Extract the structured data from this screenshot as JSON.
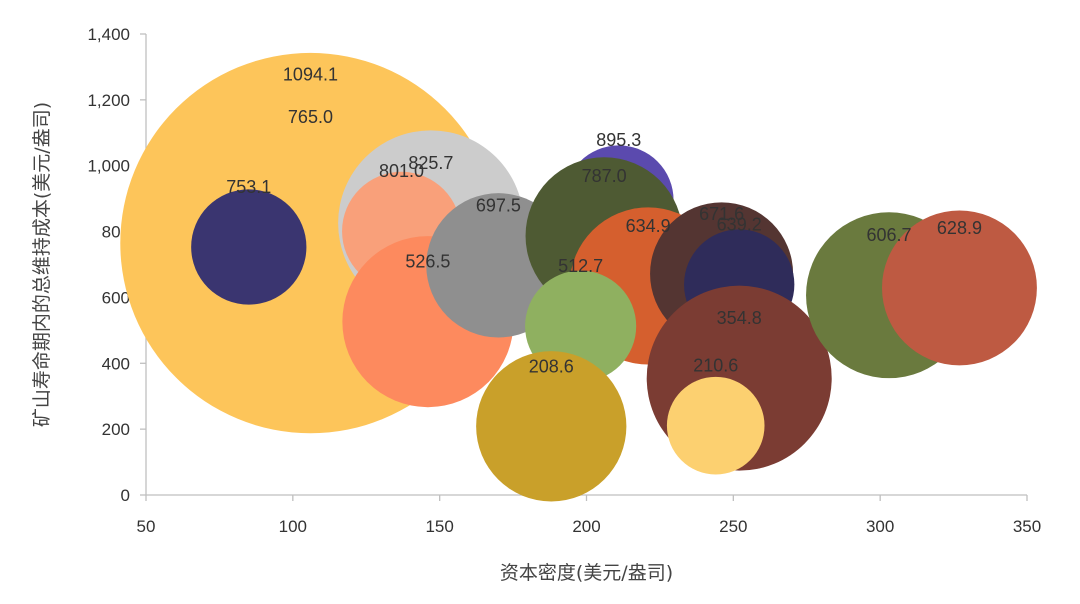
{
  "chart_data": {
    "type": "scatter",
    "subtype": "bubble",
    "title": "",
    "xlabel": "资本密度(美元/盎司)",
    "ylabel": "矿山寿命期内的总维持成本(美元/盎司)",
    "xlim": [
      50,
      350
    ],
    "ylim": [
      0,
      1400
    ],
    "x_ticks": [
      50,
      100,
      150,
      200,
      250,
      300,
      350
    ],
    "y_ticks": [
      0,
      200,
      400,
      600,
      800,
      1000,
      1200,
      1400
    ],
    "x_tick_labels": [
      "50",
      "100",
      "150",
      "200",
      "250",
      "300",
      "350"
    ],
    "y_tick_labels": [
      "0",
      "200",
      "400",
      "600",
      "800",
      "1,000",
      "1,200",
      "1,400"
    ],
    "grid": false,
    "points": [
      {
        "x": 106,
        "y": 1094.1,
        "size": 1094.1,
        "label": "1094.1",
        "color": "#d0d0d0"
      },
      {
        "x": 106,
        "y": 765.0,
        "size": 8200,
        "label": "765.0",
        "color": "#fdc55a"
      },
      {
        "x": 85,
        "y": 753.1,
        "size": 753.1,
        "label": "753.1",
        "color": "#3a3570"
      },
      {
        "x": 147,
        "y": 825.7,
        "size": 1950,
        "label": "825.7",
        "color": "#cccccc"
      },
      {
        "x": 137,
        "y": 801.0,
        "size": 801.0,
        "label": "801.0",
        "color": "#f9a07a"
      },
      {
        "x": 146,
        "y": 526.5,
        "size": 1660,
        "label": "526.5",
        "color": "#fd8a5e"
      },
      {
        "x": 170,
        "y": 697.5,
        "size": 1180,
        "label": "697.5",
        "color": "#8f8f8f"
      },
      {
        "x": 211,
        "y": 895.3,
        "size": 680,
        "label": "895.3",
        "color": "#5b4aae"
      },
      {
        "x": 206,
        "y": 787.0,
        "size": 1400,
        "label": "787.0",
        "color": "#4e5a33"
      },
      {
        "x": 221,
        "y": 634.9,
        "size": 1400,
        "label": "634.9",
        "color": "#d55f2e"
      },
      {
        "x": 198,
        "y": 512.7,
        "size": 700,
        "label": "512.7",
        "color": "#8fb060"
      },
      {
        "x": 188,
        "y": 208.6,
        "size": 1280,
        "label": "208.6",
        "color": "#c9a02a"
      },
      {
        "x": 246,
        "y": 671.6,
        "size": 1160,
        "label": "671.6",
        "color": "#543532"
      },
      {
        "x": 252,
        "y": 639.2,
        "size": 690,
        "label": "639.2",
        "color": "#2f2c5a"
      },
      {
        "x": 252,
        "y": 354.8,
        "size": 1940,
        "label": "354.8",
        "color": "#7b3c33"
      },
      {
        "x": 244,
        "y": 210.6,
        "size": 540,
        "label": "210.6",
        "color": "#fcd070"
      },
      {
        "x": 303,
        "y": 606.7,
        "size": 1560,
        "label": "606.7",
        "color": "#6a7a3e"
      },
      {
        "x": 327,
        "y": 628.9,
        "size": 1360,
        "label": "628.9",
        "color": "#be5a42"
      }
    ]
  }
}
